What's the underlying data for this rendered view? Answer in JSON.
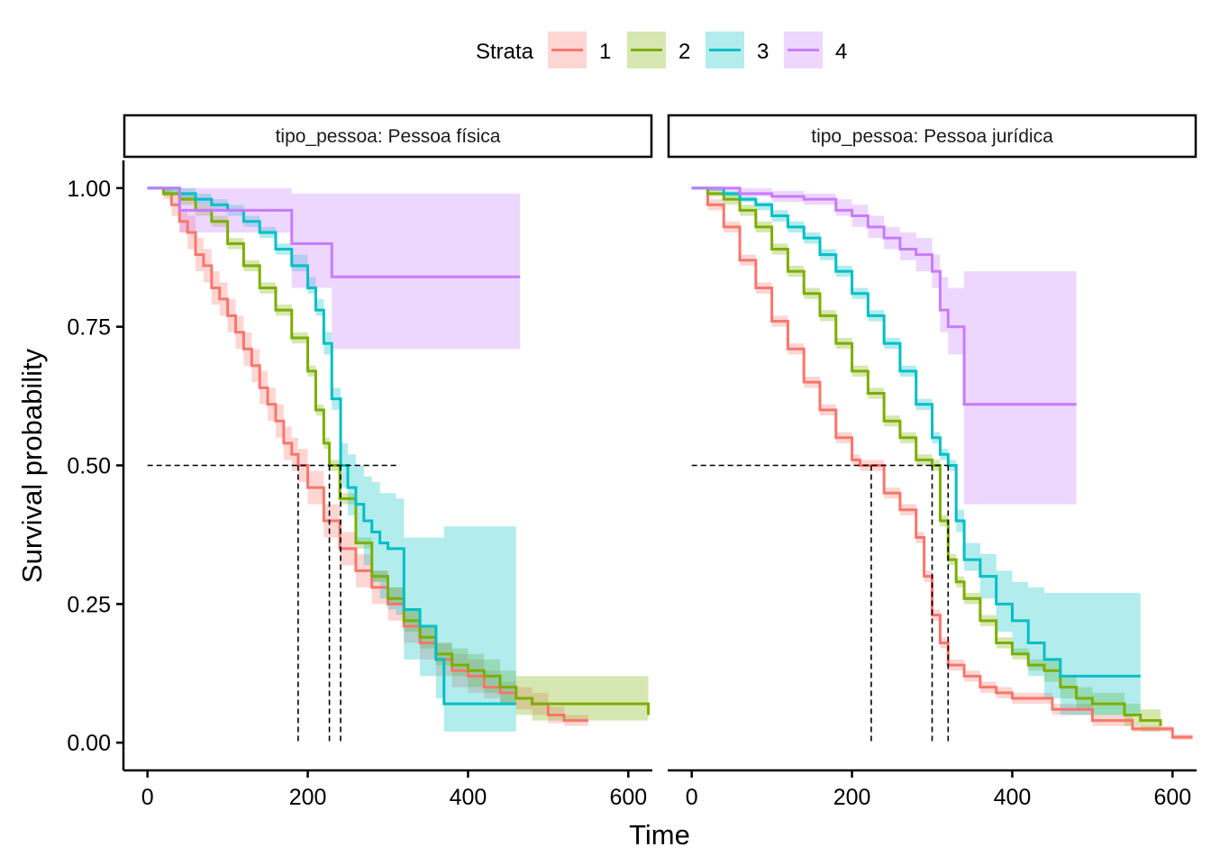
{
  "chart_data": {
    "type": "line",
    "subtype": "kaplan-meier survival curves (step) with confidence bands, faceted",
    "xlabel": "Time",
    "ylabel": "Survival probability",
    "legend": {
      "title": "Strata",
      "position": "top",
      "entries": [
        "1",
        "2",
        "3",
        "4"
      ]
    },
    "colors": {
      "1": "#F8766D",
      "2": "#7CAE00",
      "3": "#00BFC4",
      "4": "#C77CFF"
    },
    "xlim": [
      -30,
      630
    ],
    "ylim": [
      -0.05,
      1.05
    ],
    "x_ticks": [
      0,
      200,
      400,
      600
    ],
    "y_ticks": [
      0.0,
      0.25,
      0.5,
      0.75,
      1.0
    ],
    "y_tick_labels": [
      "0.00",
      "0.25",
      "0.50",
      "0.75",
      "1.00"
    ],
    "grid": false,
    "median_line": {
      "y": 0.5,
      "style": "dashed"
    },
    "panels": [
      {
        "strip_label": "tipo_pessoa: Pessoa física",
        "median_hline_x_end": 315,
        "medians": [
          {
            "strata": "1",
            "x": 188
          },
          {
            "strata": "2",
            "x": 227
          },
          {
            "strata": "3",
            "x": 241
          }
        ],
        "series": [
          {
            "name": "1",
            "x": [
              0,
              20,
              30,
              40,
              50,
              60,
              70,
              80,
              90,
              100,
              110,
              120,
              130,
              140,
              150,
              160,
              170,
              180,
              188,
              200,
              220,
              240,
              260,
              280,
              300,
              320,
              340,
              360,
              380,
              400,
              420,
              440,
              460,
              480,
              500,
              520,
              550
            ],
            "y": [
              1.0,
              0.99,
              0.97,
              0.94,
              0.92,
              0.88,
              0.86,
              0.82,
              0.8,
              0.77,
              0.74,
              0.71,
              0.68,
              0.64,
              0.61,
              0.58,
              0.54,
              0.52,
              0.5,
              0.46,
              0.4,
              0.35,
              0.31,
              0.28,
              0.25,
              0.21,
              0.18,
              0.15,
              0.13,
              0.12,
              0.1,
              0.09,
              0.08,
              0.07,
              0.05,
              0.04,
              0.04
            ],
            "lower": [
              1.0,
              0.98,
              0.95,
              0.92,
              0.89,
              0.85,
              0.83,
              0.79,
              0.77,
              0.74,
              0.71,
              0.68,
              0.65,
              0.61,
              0.58,
              0.55,
              0.51,
              0.49,
              0.47,
              0.43,
              0.37,
              0.32,
              0.28,
              0.25,
              0.22,
              0.18,
              0.15,
              0.12,
              0.1,
              0.09,
              0.08,
              0.07,
              0.06,
              0.05,
              0.035,
              0.03,
              0.03
            ],
            "upper": [
              1.0,
              1.0,
              0.99,
              0.96,
              0.95,
              0.91,
              0.89,
              0.85,
              0.83,
              0.8,
              0.77,
              0.74,
              0.71,
              0.67,
              0.64,
              0.61,
              0.57,
              0.55,
              0.53,
              0.49,
              0.43,
              0.38,
              0.34,
              0.31,
              0.28,
              0.24,
              0.21,
              0.18,
              0.16,
              0.15,
              0.13,
              0.11,
              0.1,
              0.09,
              0.065,
              0.05,
              0.05
            ]
          },
          {
            "name": "2",
            "x": [
              0,
              20,
              40,
              60,
              80,
              100,
              120,
              140,
              160,
              180,
              200,
              210,
              220,
              227,
              240,
              260,
              280,
              300,
              320,
              340,
              360,
              380,
              400,
              420,
              440,
              460,
              480,
              500,
              550,
              600,
              625
            ],
            "y": [
              1.0,
              0.99,
              0.98,
              0.96,
              0.94,
              0.9,
              0.86,
              0.82,
              0.78,
              0.73,
              0.67,
              0.6,
              0.54,
              0.5,
              0.44,
              0.36,
              0.3,
              0.26,
              0.22,
              0.19,
              0.16,
              0.14,
              0.13,
              0.12,
              0.1,
              0.08,
              0.07,
              0.07,
              0.07,
              0.07,
              0.05
            ],
            "lower": [
              1.0,
              0.985,
              0.97,
              0.95,
              0.93,
              0.89,
              0.85,
              0.81,
              0.77,
              0.72,
              0.66,
              0.59,
              0.53,
              0.49,
              0.43,
              0.35,
              0.29,
              0.25,
              0.2,
              0.17,
              0.14,
              0.12,
              0.1,
              0.09,
              0.07,
              0.05,
              0.04,
              0.04,
              0.04,
              0.04,
              0.04
            ],
            "upper": [
              1.0,
              1.0,
              0.99,
              0.97,
              0.95,
              0.91,
              0.87,
              0.83,
              0.79,
              0.74,
              0.68,
              0.61,
              0.55,
              0.51,
              0.45,
              0.37,
              0.31,
              0.28,
              0.24,
              0.21,
              0.18,
              0.17,
              0.16,
              0.15,
              0.13,
              0.12,
              0.12,
              0.12,
              0.12,
              0.12,
              0.11
            ]
          },
          {
            "name": "3",
            "x": [
              0,
              20,
              40,
              60,
              80,
              100,
              120,
              140,
              160,
              180,
              200,
              210,
              220,
              230,
              241,
              250,
              260,
              270,
              280,
              290,
              300,
              310,
              320,
              340,
              360,
              370,
              400,
              460
            ],
            "y": [
              1.0,
              1.0,
              0.99,
              0.98,
              0.97,
              0.96,
              0.94,
              0.92,
              0.89,
              0.86,
              0.82,
              0.78,
              0.72,
              0.62,
              0.5,
              0.46,
              0.43,
              0.4,
              0.38,
              0.36,
              0.35,
              0.35,
              0.24,
              0.21,
              0.15,
              0.07,
              0.07,
              0.07
            ],
            "lower": [
              1.0,
              0.99,
              0.98,
              0.97,
              0.96,
              0.95,
              0.93,
              0.91,
              0.88,
              0.85,
              0.81,
              0.77,
              0.7,
              0.6,
              0.46,
              0.41,
              0.36,
              0.32,
              0.29,
              0.26,
              0.24,
              0.23,
              0.15,
              0.12,
              0.08,
              0.02,
              0.02,
              0.02
            ],
            "upper": [
              1.0,
              1.0,
              1.0,
              0.99,
              0.98,
              0.97,
              0.95,
              0.93,
              0.9,
              0.88,
              0.84,
              0.8,
              0.74,
              0.64,
              0.54,
              0.52,
              0.5,
              0.48,
              0.47,
              0.45,
              0.45,
              0.44,
              0.37,
              0.37,
              0.37,
              0.39,
              0.39,
              0.39
            ]
          },
          {
            "name": "4",
            "x": [
              0,
              40,
              180,
              230,
              465
            ],
            "y": [
              1.0,
              0.96,
              0.9,
              0.84,
              0.84
            ],
            "lower": [
              1.0,
              0.92,
              0.82,
              0.71,
              0.71
            ],
            "upper": [
              1.0,
              1.0,
              0.99,
              0.99,
              0.99
            ]
          }
        ]
      },
      {
        "strip_label": "tipo_pessoa: Pessoa jurídica",
        "median_hline_x_end": 320,
        "medians": [
          {
            "strata": "1",
            "x": 224
          },
          {
            "strata": "2",
            "x": 300
          },
          {
            "strata": "3",
            "x": 320
          }
        ],
        "series": [
          {
            "name": "1",
            "x": [
              0,
              20,
              40,
              60,
              80,
              100,
              120,
              140,
              160,
              180,
              200,
              210,
              224,
              240,
              260,
              280,
              290,
              300,
              310,
              320,
              340,
              360,
              380,
              400,
              450,
              500,
              550,
              600,
              625
            ],
            "y": [
              1.0,
              0.97,
              0.93,
              0.87,
              0.82,
              0.76,
              0.71,
              0.65,
              0.6,
              0.55,
              0.51,
              0.5,
              0.5,
              0.45,
              0.42,
              0.37,
              0.3,
              0.23,
              0.18,
              0.14,
              0.12,
              0.1,
              0.09,
              0.08,
              0.06,
              0.04,
              0.025,
              0.01,
              0.01
            ],
            "lower": [
              1.0,
              0.96,
              0.92,
              0.86,
              0.81,
              0.75,
              0.7,
              0.64,
              0.59,
              0.54,
              0.5,
              0.49,
              0.49,
              0.44,
              0.41,
              0.36,
              0.29,
              0.22,
              0.17,
              0.13,
              0.11,
              0.09,
              0.08,
              0.07,
              0.05,
              0.03,
              0.02,
              0.005,
              0.005
            ],
            "upper": [
              1.0,
              0.98,
              0.94,
              0.88,
              0.83,
              0.77,
              0.72,
              0.66,
              0.61,
              0.56,
              0.52,
              0.51,
              0.51,
              0.46,
              0.43,
              0.38,
              0.31,
              0.24,
              0.19,
              0.15,
              0.13,
              0.11,
              0.1,
              0.09,
              0.07,
              0.05,
              0.03,
              0.015,
              0.015
            ]
          },
          {
            "name": "2",
            "x": [
              0,
              20,
              40,
              60,
              80,
              100,
              120,
              140,
              160,
              180,
              200,
              220,
              240,
              260,
              280,
              300,
              310,
              320,
              330,
              340,
              360,
              380,
              400,
              420,
              440,
              460,
              480,
              500,
              540,
              560,
              585
            ],
            "y": [
              1.0,
              0.99,
              0.98,
              0.96,
              0.93,
              0.89,
              0.85,
              0.81,
              0.77,
              0.72,
              0.67,
              0.63,
              0.58,
              0.55,
              0.51,
              0.5,
              0.4,
              0.33,
              0.29,
              0.26,
              0.22,
              0.18,
              0.16,
              0.14,
              0.13,
              0.1,
              0.08,
              0.07,
              0.05,
              0.04,
              0.03
            ],
            "lower": [
              1.0,
              0.985,
              0.97,
              0.95,
              0.92,
              0.88,
              0.84,
              0.8,
              0.76,
              0.71,
              0.66,
              0.62,
              0.57,
              0.54,
              0.5,
              0.49,
              0.39,
              0.32,
              0.28,
              0.25,
              0.21,
              0.17,
              0.15,
              0.13,
              0.11,
              0.08,
              0.06,
              0.05,
              0.03,
              0.02,
              0.02
            ],
            "upper": [
              1.0,
              1.0,
              0.99,
              0.97,
              0.94,
              0.9,
              0.86,
              0.82,
              0.78,
              0.73,
              0.68,
              0.64,
              0.59,
              0.56,
              0.52,
              0.51,
              0.41,
              0.34,
              0.3,
              0.27,
              0.23,
              0.19,
              0.17,
              0.15,
              0.15,
              0.12,
              0.1,
              0.09,
              0.07,
              0.06,
              0.07
            ]
          },
          {
            "name": "3",
            "x": [
              0,
              20,
              40,
              60,
              80,
              100,
              120,
              140,
              160,
              180,
              200,
              220,
              240,
              260,
              280,
              300,
              310,
              320,
              330,
              340,
              360,
              380,
              400,
              420,
              440,
              460,
              500,
              560
            ],
            "y": [
              1.0,
              1.0,
              0.99,
              0.98,
              0.97,
              0.95,
              0.93,
              0.91,
              0.88,
              0.85,
              0.81,
              0.77,
              0.72,
              0.67,
              0.61,
              0.55,
              0.52,
              0.5,
              0.4,
              0.33,
              0.3,
              0.25,
              0.22,
              0.18,
              0.15,
              0.12,
              0.12,
              0.12
            ],
            "lower": [
              1.0,
              0.995,
              0.985,
              0.975,
              0.96,
              0.94,
              0.92,
              0.9,
              0.87,
              0.84,
              0.8,
              0.76,
              0.71,
              0.66,
              0.6,
              0.54,
              0.51,
              0.49,
              0.38,
              0.31,
              0.26,
              0.2,
              0.16,
              0.12,
              0.08,
              0.05,
              0.05,
              0.05
            ],
            "upper": [
              1.0,
              1.0,
              0.995,
              0.985,
              0.975,
              0.96,
              0.94,
              0.92,
              0.89,
              0.86,
              0.82,
              0.78,
              0.73,
              0.68,
              0.62,
              0.56,
              0.53,
              0.51,
              0.42,
              0.36,
              0.34,
              0.31,
              0.29,
              0.28,
              0.27,
              0.27,
              0.27,
              0.27
            ]
          },
          {
            "name": "4",
            "x": [
              0,
              20,
              60,
              100,
              140,
              180,
              200,
              220,
              240,
              260,
              280,
              300,
              310,
              320,
              340,
              480
            ],
            "y": [
              1.0,
              1.0,
              0.99,
              0.985,
              0.98,
              0.96,
              0.95,
              0.93,
              0.91,
              0.89,
              0.88,
              0.85,
              0.78,
              0.75,
              0.61,
              0.61
            ],
            "lower": [
              1.0,
              0.995,
              0.985,
              0.975,
              0.97,
              0.95,
              0.93,
              0.91,
              0.89,
              0.87,
              0.85,
              0.82,
              0.74,
              0.7,
              0.43,
              0.43
            ],
            "upper": [
              1.0,
              1.0,
              1.0,
              0.995,
              0.99,
              0.98,
              0.97,
              0.95,
              0.93,
              0.92,
              0.91,
              0.88,
              0.84,
              0.82,
              0.85,
              0.85
            ]
          }
        ]
      }
    ]
  }
}
